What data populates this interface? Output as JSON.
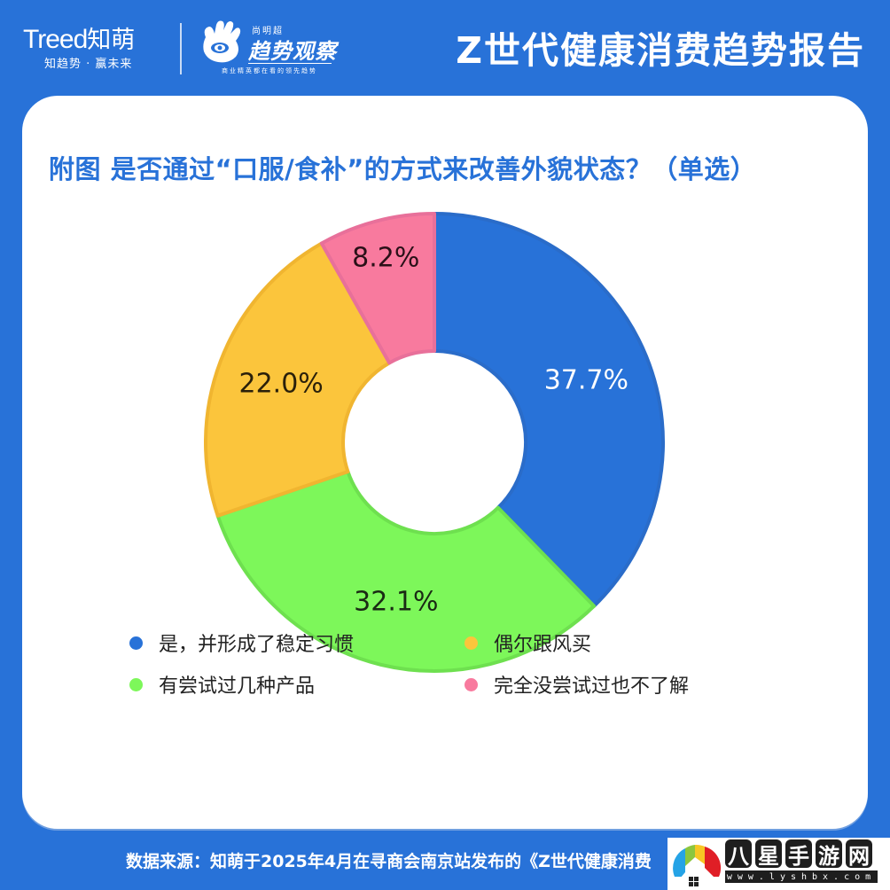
{
  "header": {
    "brand_main": "Treed",
    "brand_cn": "知萌",
    "brand_slogan": "知趋势 · 赢未来",
    "partner_top": "尚明超",
    "partner_name": "趋势观察",
    "partner_slogan": "商业精英都在看的领先趋势",
    "report_title": "Z世代健康消费趋势报告"
  },
  "card": {
    "chart_title": "附图 是否通过“口服/食补”的方式来改善外貌状态？（单选）"
  },
  "colors": {
    "background": "#2872d8",
    "title": "#2872d8",
    "blue": "#2872d8",
    "green": "#7df75a",
    "yellow": "#fbc53c",
    "pink": "#f87a9e"
  },
  "chart_data": {
    "type": "pie",
    "donut": true,
    "title": "附图 是否通过“口服/食补”的方式来改善外貌状态？（单选）",
    "categories": [
      "是，并形成了稳定习惯",
      "有尝试过几种产品",
      "偶尔跟风买",
      "完全没尝试过也不了解"
    ],
    "values": [
      37.7,
      32.1,
      22.0,
      8.2
    ],
    "labels": [
      "37.7%",
      "32.1%",
      "22.0%",
      "8.2%"
    ],
    "colors": [
      "#2872d8",
      "#7df75a",
      "#fbc53c",
      "#f87a9e"
    ],
    "start_angle": "12 o'clock",
    "direction": "clockwise",
    "legend_position": "bottom"
  },
  "legend": {
    "items": [
      {
        "label": "是，并形成了稳定习惯",
        "color": "#2872d8"
      },
      {
        "label": "偶尔跟风买",
        "color": "#fbc53c"
      },
      {
        "label": "有尝试过几种产品",
        "color": "#7df75a"
      },
      {
        "label": "完全没尝试过也不了解",
        "color": "#f87a9e"
      }
    ]
  },
  "footer": {
    "source": "数据来源：知萌于2025年4月在寻商会南京站发布的《Z世代健康消费"
  },
  "watermark": {
    "chars": [
      "八",
      "星",
      "手",
      "游",
      "网"
    ],
    "url": "www.lyshbx.com"
  }
}
